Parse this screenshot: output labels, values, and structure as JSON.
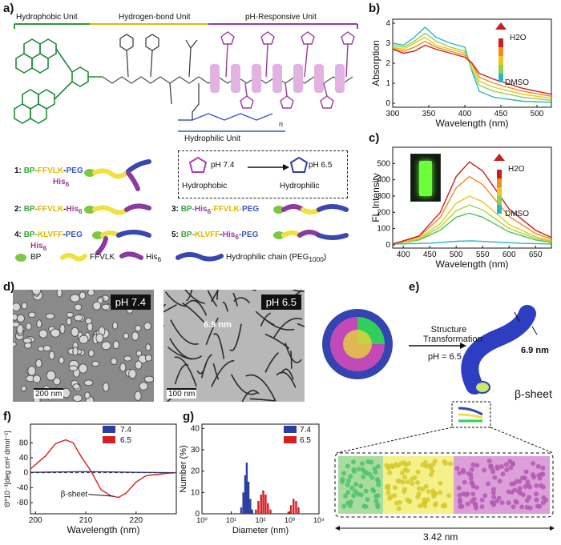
{
  "panels": {
    "a": "a)",
    "b": "b)",
    "c": "c)",
    "d": "d)",
    "e": "e)",
    "f": "f)",
    "g": "g)"
  },
  "panel_a": {
    "units": {
      "hydrophobic": "Hydrophobic Unit",
      "hbond": "Hydrogen-bond Unit",
      "ph": "pH-Responsive Unit",
      "hydrophilic": "Hydrophilic Unit"
    },
    "ph_box": {
      "ph1": "pH 7.4",
      "ph2": "pH 6.5",
      "left": "Hydrophobic",
      "right": "Hydrophilic",
      "n": "n"
    },
    "compounds": [
      {
        "num": "1:",
        "bp": "BP-",
        "ff": "FFVLK",
        "sep": "-",
        "peg": "PEG",
        "sub": "His",
        "sub6": "6"
      },
      {
        "num": "2:",
        "bp": "BP-",
        "ff": "FFVLK",
        "sep": "-",
        "his": "His",
        "his6": "6"
      },
      {
        "num": "3:",
        "bp": "BP-",
        "his": "His",
        "his6": "6",
        "ff": "-FFVLK-",
        "peg": "PEG"
      },
      {
        "num": "4:",
        "bp": "BP-",
        "ff": "KLVFF",
        "sep": "-",
        "peg": "PEG",
        "sub": "His",
        "sub6": "6"
      },
      {
        "num": "5:",
        "bp": "BP-",
        "ff": "KLVFF",
        "sep": "-",
        "his": "His",
        "his6": "6",
        "tail": "-PEG"
      }
    ],
    "legend": {
      "bp": "BP",
      "ff": "FFVLK",
      "his": "His",
      "his6": "6",
      "peg": "Hydrophilic chain (PEG",
      "peg_sub": "1000",
      "peg_end": ")"
    }
  },
  "chart_data": [
    {
      "panel": "b",
      "type": "line",
      "xlabel": "Wavelength (nm)",
      "ylabel": "Absorption",
      "xlim": [
        300,
        520
      ],
      "ylim": [
        -0.2,
        4.2
      ],
      "xticks": [
        300,
        350,
        400,
        450,
        500
      ],
      "yticks": [
        0,
        1,
        2,
        3,
        4
      ],
      "gradient_top": "H2O",
      "gradient_bottom": "DMSO",
      "series": [
        {
          "color": "#2bb6c8",
          "points": [
            [
              300,
              3.0
            ],
            [
              315,
              2.9
            ],
            [
              330,
              3.3
            ],
            [
              345,
              3.8
            ],
            [
              360,
              3.3
            ],
            [
              380,
              3.0
            ],
            [
              400,
              2.8
            ],
            [
              410,
              1.6
            ],
            [
              420,
              0.6
            ],
            [
              440,
              0.3
            ],
            [
              480,
              0.1
            ],
            [
              520,
              0.05
            ]
          ]
        },
        {
          "color": "#8fd14f",
          "points": [
            [
              300,
              2.9
            ],
            [
              315,
              2.8
            ],
            [
              330,
              3.1
            ],
            [
              345,
              3.5
            ],
            [
              360,
              3.1
            ],
            [
              380,
              2.8
            ],
            [
              400,
              2.6
            ],
            [
              410,
              1.7
            ],
            [
              420,
              0.9
            ],
            [
              440,
              0.6
            ],
            [
              480,
              0.3
            ],
            [
              520,
              0.15
            ]
          ]
        },
        {
          "color": "#f0c419",
          "points": [
            [
              300,
              2.8
            ],
            [
              315,
              2.7
            ],
            [
              330,
              3.0
            ],
            [
              345,
              3.3
            ],
            [
              360,
              2.9
            ],
            [
              380,
              2.7
            ],
            [
              400,
              2.5
            ],
            [
              410,
              1.9
            ],
            [
              420,
              1.1
            ],
            [
              440,
              0.8
            ],
            [
              480,
              0.45
            ],
            [
              520,
              0.25
            ]
          ]
        },
        {
          "color": "#f08c1a",
          "points": [
            [
              300,
              2.75
            ],
            [
              315,
              2.6
            ],
            [
              330,
              2.8
            ],
            [
              345,
              3.1
            ],
            [
              360,
              2.8
            ],
            [
              380,
              2.6
            ],
            [
              400,
              2.4
            ],
            [
              410,
              2.0
            ],
            [
              420,
              1.3
            ],
            [
              440,
              1.0
            ],
            [
              480,
              0.6
            ],
            [
              520,
              0.35
            ]
          ]
        },
        {
          "color": "#c81e1e",
          "points": [
            [
              300,
              2.7
            ],
            [
              315,
              2.5
            ],
            [
              330,
              2.6
            ],
            [
              345,
              2.9
            ],
            [
              360,
              2.7
            ],
            [
              380,
              2.5
            ],
            [
              400,
              2.3
            ],
            [
              410,
              2.0
            ],
            [
              420,
              1.5
            ],
            [
              440,
              1.2
            ],
            [
              480,
              0.75
            ],
            [
              520,
              0.45
            ]
          ]
        }
      ]
    },
    {
      "panel": "c",
      "type": "line",
      "xlabel": "Wavelength (nm)",
      "ylabel": "FL Intensity",
      "xlim": [
        380,
        680
      ],
      "ylim": [
        -20,
        600
      ],
      "xticks": [
        400,
        450,
        500,
        550,
        600,
        650
      ],
      "yticks": [
        0,
        100,
        200,
        300,
        400,
        500
      ],
      "gradient_top": "H2O",
      "gradient_bottom": "DMSO",
      "series": [
        {
          "color": "#2bb6c8",
          "points": [
            [
              380,
              5
            ],
            [
              450,
              10
            ],
            [
              500,
              22
            ],
            [
              530,
              25
            ],
            [
              560,
              20
            ],
            [
              620,
              10
            ],
            [
              680,
              5
            ]
          ]
        },
        {
          "color": "#4cc35a",
          "points": [
            [
              380,
              5
            ],
            [
              430,
              30
            ],
            [
              470,
              90
            ],
            [
              500,
              170
            ],
            [
              525,
              195
            ],
            [
              550,
              170
            ],
            [
              600,
              80
            ],
            [
              650,
              30
            ],
            [
              680,
              15
            ]
          ]
        },
        {
          "color": "#a7d63a",
          "points": [
            [
              380,
              5
            ],
            [
              430,
              35
            ],
            [
              470,
              110
            ],
            [
              500,
              210
            ],
            [
              525,
              245
            ],
            [
              550,
              215
            ],
            [
              600,
              100
            ],
            [
              650,
              40
            ],
            [
              680,
              20
            ]
          ]
        },
        {
          "color": "#f0c419",
          "points": [
            [
              380,
              5
            ],
            [
              430,
              40
            ],
            [
              470,
              130
            ],
            [
              500,
              255
            ],
            [
              525,
              300
            ],
            [
              550,
              265
            ],
            [
              600,
              125
            ],
            [
              650,
              50
            ],
            [
              680,
              25
            ]
          ]
        },
        {
          "color": "#f08c1a",
          "points": [
            [
              380,
              5
            ],
            [
              430,
              50
            ],
            [
              470,
              170
            ],
            [
              500,
              350
            ],
            [
              525,
              420
            ],
            [
              550,
              370
            ],
            [
              600,
              175
            ],
            [
              650,
              70
            ],
            [
              680,
              35
            ]
          ]
        },
        {
          "color": "#c81e1e",
          "points": [
            [
              380,
              5
            ],
            [
              430,
              55
            ],
            [
              470,
              200
            ],
            [
              500,
              420
            ],
            [
              525,
              510
            ],
            [
              550,
              455
            ],
            [
              600,
              220
            ],
            [
              650,
              90
            ],
            [
              680,
              45
            ]
          ]
        }
      ]
    },
    {
      "panel": "f",
      "type": "line",
      "xlabel": "Wavelength (nm)",
      "ylabel": "Θ*10⁻³[deg cm² dmol⁻¹]",
      "xlim": [
        199,
        228
      ],
      "ylim": [
        -110,
        130
      ],
      "xticks": [
        200,
        210,
        220
      ],
      "yticks": [
        -80,
        -40,
        0,
        40,
        80
      ],
      "annotation": "β-sheet",
      "series": [
        {
          "name": "7.4",
          "color": "#2d3f9e",
          "points": [
            [
              199,
              1
            ],
            [
              205,
              2
            ],
            [
              210,
              3
            ],
            [
              215,
              2
            ],
            [
              220,
              1
            ],
            [
              228,
              0
            ]
          ]
        },
        {
          "name": "6.5",
          "color": "#d42020",
          "points": [
            [
              199,
              10
            ],
            [
              202,
              45
            ],
            [
              204,
              78
            ],
            [
              206,
              88
            ],
            [
              207.5,
              80
            ],
            [
              209,
              45
            ],
            [
              211,
              5
            ],
            [
              213,
              -45
            ],
            [
              215,
              -62
            ],
            [
              216.5,
              -66
            ],
            [
              218,
              -55
            ],
            [
              220,
              -25
            ],
            [
              222,
              -8
            ],
            [
              224,
              -5
            ],
            [
              226,
              -2
            ],
            [
              228,
              0
            ]
          ]
        }
      ]
    },
    {
      "panel": "g",
      "type": "bar",
      "xlabel": "Diameter (nm)",
      "ylabel": "Number (%)",
      "xscale": "log",
      "xlim": [
        1,
        10000
      ],
      "ylim": [
        0,
        42
      ],
      "yticks": [
        0,
        10,
        20,
        30,
        40
      ],
      "xtick_labels": [
        "10⁰",
        "10¹",
        "10²",
        "10³",
        "10⁴"
      ],
      "series": [
        {
          "name": "7.4",
          "color": "#2d3f9e",
          "bars": [
            [
              22,
              3
            ],
            [
              26,
              10
            ],
            [
              30,
              18
            ],
            [
              34,
              24
            ],
            [
              39,
              15
            ],
            [
              45,
              7
            ],
            [
              52,
              2
            ]
          ]
        },
        {
          "name": "6.5",
          "color": "#d42020",
          "bars": [
            [
              70,
              2
            ],
            [
              85,
              6
            ],
            [
              105,
              9
            ],
            [
              125,
              11
            ],
            [
              150,
              9
            ],
            [
              180,
              5
            ],
            [
              220,
              2
            ],
            [
              900,
              1
            ],
            [
              1100,
              4
            ],
            [
              1350,
              7
            ],
            [
              1650,
              6
            ],
            [
              2000,
              3
            ]
          ]
        }
      ]
    }
  ],
  "panel_d": {
    "left_tag": "pH 7.4",
    "right_tag": "pH 6.5",
    "left_scale": "200 nm",
    "right_scale": "100 nm",
    "fiber": "6.9 nm"
  },
  "panel_e": {
    "arrow_top": "Structure",
    "arrow_bottom": "Transformation",
    "ph": "pH = 6.5",
    "diameter": "6.9 nm",
    "beta": "β-sheet",
    "length": "3.42 nm"
  }
}
